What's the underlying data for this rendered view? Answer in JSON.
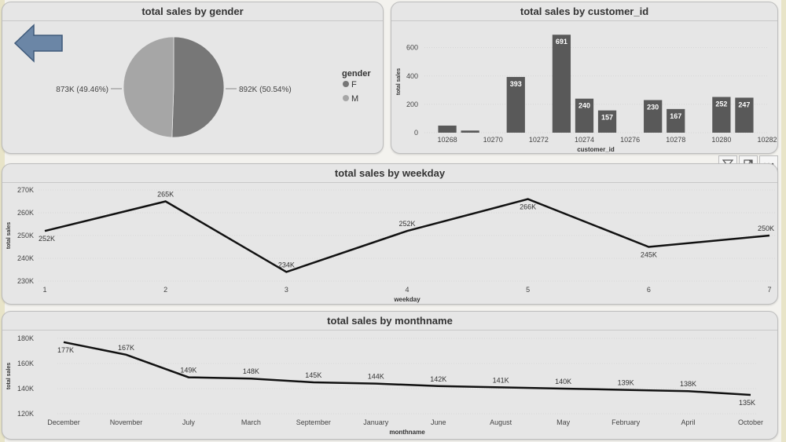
{
  "colors": {
    "panel_bg": "#e6e6e6",
    "bar": "#595959",
    "line": "#111111",
    "pie_f": "#777777",
    "pie_m": "#a6a6a6",
    "arrow": "#6b86a6"
  },
  "toolbar": {
    "filter_icon": "filter-icon",
    "focus_icon": "focus-mode-icon",
    "more_icon": "more-options-icon"
  },
  "chart_data": [
    {
      "type": "pie",
      "title": "total sales by gender",
      "legend_title": "gender",
      "legend_position": "right",
      "slices": [
        {
          "name": "F",
          "value": 892,
          "label": "892K (50.54%)"
        },
        {
          "name": "M",
          "value": 873,
          "label": "873K (49.46%)"
        }
      ]
    },
    {
      "type": "bar",
      "title": "total sales by customer_id",
      "xlabel": "customer_id",
      "ylabel": "total sales",
      "ylim": [
        0,
        720
      ],
      "yticks": [
        0,
        200,
        400,
        600
      ],
      "xlim": [
        10267,
        10282
      ],
      "xticks": [
        10268,
        10270,
        10272,
        10274,
        10276,
        10278,
        10280,
        10282
      ],
      "bars": [
        {
          "x": 10268,
          "value": 50,
          "label": ""
        },
        {
          "x": 10269,
          "value": 15,
          "label": ""
        },
        {
          "x": 10271,
          "value": 393,
          "label": "393"
        },
        {
          "x": 10273,
          "value": 691,
          "label": "691"
        },
        {
          "x": 10274,
          "value": 240,
          "label": "240"
        },
        {
          "x": 10275,
          "value": 157,
          "label": "157"
        },
        {
          "x": 10277,
          "value": 230,
          "label": "230"
        },
        {
          "x": 10278,
          "value": 167,
          "label": "167"
        },
        {
          "x": 10280,
          "value": 252,
          "label": "252"
        },
        {
          "x": 10281,
          "value": 247,
          "label": "247"
        }
      ]
    },
    {
      "type": "line",
      "title": "total sales by weekday",
      "xlabel": "weekday",
      "ylabel": "total sales",
      "ylim": [
        230,
        270
      ],
      "yticks": [
        "230K",
        "240K",
        "250K",
        "260K",
        "270K"
      ],
      "ytick_values": [
        230,
        240,
        250,
        260,
        270
      ],
      "categories": [
        "1",
        "2",
        "3",
        "4",
        "5",
        "6",
        "7"
      ],
      "values": [
        252,
        265,
        234,
        252,
        266,
        245,
        250
      ],
      "labels": [
        "252K",
        "265K",
        "234K",
        "252K",
        "266K",
        "245K",
        "250K"
      ]
    },
    {
      "type": "line",
      "title": "total sales by monthname",
      "xlabel": "monthname",
      "ylabel": "total sales",
      "ylim": [
        120,
        180
      ],
      "yticks": [
        "120K",
        "140K",
        "160K",
        "180K"
      ],
      "ytick_values": [
        120,
        140,
        160,
        180
      ],
      "categories": [
        "December",
        "November",
        "July",
        "March",
        "September",
        "January",
        "June",
        "August",
        "May",
        "February",
        "April",
        "October"
      ],
      "values": [
        177,
        167,
        149,
        148,
        145,
        144,
        142,
        141,
        140,
        139,
        138,
        135
      ],
      "labels": [
        "177K",
        "167K",
        "149K",
        "148K",
        "145K",
        "144K",
        "142K",
        "141K",
        "140K",
        "139K",
        "138K",
        "135K"
      ]
    }
  ]
}
